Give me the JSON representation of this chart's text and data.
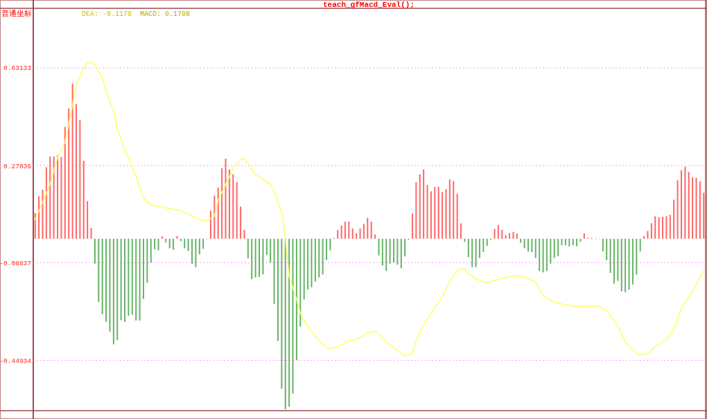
{
  "chart_data": {
    "type": "bar",
    "title": "teach_gfMacd_Eval();",
    "annotations": [
      "普通坐标",
      "MACD: 0.1708"
    ],
    "categories": [
      null,
      null,
      null,
      null,
      null,
      null,
      null,
      null,
      null,
      null,
      null,
      null,
      null,
      null,
      null,
      null,
      null,
      null,
      null,
      null,
      null,
      null,
      null,
      null,
      null,
      null,
      null,
      null,
      null,
      null,
      null,
      null,
      null,
      null,
      null,
      null,
      null,
      null,
      null,
      null,
      null,
      null,
      null,
      null,
      null,
      null,
      null,
      null,
      null,
      null,
      null,
      null,
      null,
      null,
      null,
      null,
      null,
      null,
      null,
      null,
      null,
      null,
      null,
      null,
      null,
      null,
      null,
      null,
      null,
      null,
      null,
      null,
      null,
      null,
      null,
      null,
      null,
      null,
      null,
      null,
      null,
      null,
      null,
      null,
      null,
      null,
      null,
      null,
      null,
      null,
      null,
      null,
      null,
      null,
      null,
      null,
      null,
      null,
      null,
      null,
      null,
      null,
      null,
      null,
      null,
      null,
      null,
      null,
      null,
      null,
      null,
      null,
      null,
      null,
      null,
      null,
      null,
      null,
      null,
      null,
      null,
      null,
      null,
      null,
      null,
      null,
      null,
      null,
      null,
      null,
      null,
      null,
      null,
      null,
      null,
      null,
      null,
      null,
      null,
      null,
      null,
      null,
      null,
      null,
      null,
      null,
      null,
      null,
      null,
      null,
      null,
      null,
      null,
      null,
      null,
      null,
      null,
      null,
      null,
      null,
      null,
      null,
      null,
      null,
      null,
      null,
      null,
      null,
      null,
      null,
      null,
      null,
      null,
      null,
      null,
      null,
      null,
      null,
      null,
      null
    ],
    "ylim": [
      -0.635,
      0.851
    ],
    "yticks": [
      0.63133,
      0.27036,
      -0.08837,
      -0.44934
    ],
    "grid": "y",
    "series": [
      {
        "values": [
          0.095,
          0.157,
          0.181,
          0.264,
          0.304,
          0.304,
          0.308,
          0.302,
          0.413,
          0.481,
          0.573,
          0.497,
          0.438,
          0.288,
          0.139,
          0.04,
          -0.092,
          -0.233,
          -0.279,
          -0.307,
          -0.343,
          -0.39,
          -0.375,
          -0.301,
          -0.307,
          -0.285,
          -0.281,
          -0.302,
          -0.302,
          -0.222,
          -0.163,
          -0.088,
          -0.039,
          -0.043,
          0.009,
          -0.014,
          -0.035,
          -0.041,
          0.01,
          -0.009,
          -0.035,
          -0.045,
          -0.092,
          -0.105,
          -0.058,
          -0.037,
          0,
          0.103,
          0.159,
          0.189,
          0.26,
          0.296,
          0.256,
          0.238,
          0.209,
          0.119,
          0.032,
          -0.072,
          -0.149,
          -0.143,
          -0.141,
          -0.132,
          -0.06,
          -0.088,
          -0.241,
          -0.377,
          -0.554,
          -0.63,
          -0.62,
          -0.572,
          -0.448,
          -0.324,
          -0.224,
          -0.187,
          -0.179,
          -0.158,
          -0.143,
          -0.132,
          -0.078,
          -0.043,
          0.003,
          0.032,
          0.049,
          0.063,
          0.063,
          0.038,
          0.02,
          0.038,
          0.055,
          0.077,
          0.063,
          0.016,
          -0.062,
          -0.099,
          -0.119,
          -0.092,
          -0.088,
          -0.096,
          -0.109,
          -0.065,
          -0.004,
          0.093,
          0.209,
          0.238,
          0.256,
          0.199,
          0.175,
          0.191,
          0.192,
          0.172,
          0.183,
          0.219,
          0.213,
          0.166,
          0.057,
          -0.011,
          -0.068,
          -0.105,
          -0.105,
          -0.071,
          -0.049,
          -0.026,
          -0.004,
          0.036,
          0.051,
          0.033,
          0.013,
          0.021,
          0.025,
          0.019,
          -0.015,
          -0.035,
          -0.047,
          -0.049,
          -0.071,
          -0.119,
          -0.124,
          -0.119,
          -0.092,
          -0.071,
          -0.065,
          -0.024,
          -0.024,
          -0.028,
          -0.024,
          -0.028,
          -0.011,
          0.02,
          0.003,
          0.003,
          0,
          0,
          -0.047,
          -0.079,
          -0.126,
          -0.166,
          -0.156,
          -0.194,
          -0.197,
          -0.188,
          -0.169,
          -0.132,
          -0.047,
          0.01,
          0.029,
          0.057,
          0.083,
          0.08,
          0.081,
          0.083,
          0.089,
          0.144,
          0.216,
          0.253,
          0.266,
          0.247,
          0.227,
          0.225,
          0.212,
          0.17
        ],
        "colors": [
          "#ff6666",
          "#ff6666",
          "#ff6666",
          "#ff6666",
          "#ff6666",
          "#ff6666",
          "#ff6666",
          "#ff6666",
          "#ff6666",
          "#ff6666",
          "#ff6666",
          "#ff6666",
          "#ff6666",
          "#ff6666",
          "#ff6666",
          "#ff6666",
          "#66b366",
          "#66b366",
          "#66b366",
          "#66b366",
          "#66b366",
          "#66b366",
          "#66b366",
          "#66b366",
          "#66b366",
          "#66b366",
          "#66b366",
          "#66b366",
          "#66b366",
          "#66b366",
          "#66b366",
          "#66b366",
          "#66b366",
          "#66b366",
          "#ff6666",
          "#66b366",
          "#66b366",
          "#66b366",
          "#ff6666",
          "#66b366",
          "#66b366",
          "#66b366",
          "#66b366",
          "#66b366",
          "#66b366",
          "#66b366",
          "#ff6666",
          "#ff6666",
          "#ff6666",
          "#ff6666",
          "#ff6666",
          "#ff6666",
          "#ff6666",
          "#ff6666",
          "#ff6666",
          "#ff6666",
          "#ff6666",
          "#66b366",
          "#66b366",
          "#66b366",
          "#66b366",
          "#66b366",
          "#66b366",
          "#66b366",
          "#66b366",
          "#66b366",
          "#66b366",
          "#66b366",
          "#66b366",
          "#66b366",
          "#66b366",
          "#66b366",
          "#66b366",
          "#66b366",
          "#66b366",
          "#66b366",
          "#66b366",
          "#66b366",
          "#66b366",
          "#66b366",
          "#ff6666",
          "#ff6666",
          "#ff6666",
          "#ff6666",
          "#ff6666",
          "#ff6666",
          "#ff6666",
          "#ff6666",
          "#ff6666",
          "#ff6666",
          "#ff6666",
          "#ff6666",
          "#66b366",
          "#66b366",
          "#66b366",
          "#66b366",
          "#66b366",
          "#66b366",
          "#66b366",
          "#66b366",
          "#66b366",
          "#ff6666",
          "#ff6666",
          "#ff6666",
          "#ff6666",
          "#ff6666",
          "#ff6666",
          "#ff6666",
          "#ff6666",
          "#ff6666",
          "#ff6666",
          "#ff6666",
          "#ff6666",
          "#ff6666",
          "#ff6666",
          "#66b366",
          "#66b366",
          "#66b366",
          "#66b366",
          "#66b366",
          "#66b366",
          "#66b366",
          "#66b366",
          "#ff6666",
          "#ff6666",
          "#ff6666",
          "#ff6666",
          "#ff6666",
          "#ff6666",
          "#ff6666",
          "#66b366",
          "#66b366",
          "#66b366",
          "#66b366",
          "#66b366",
          "#66b366",
          "#66b366",
          "#66b366",
          "#66b366",
          "#66b366",
          "#66b366",
          "#66b366",
          "#66b366",
          "#66b366",
          "#66b366",
          "#66b366",
          "#66b366",
          "#ff6666",
          "#ff6666",
          "#ff6666",
          "#ff6666",
          "#ff6666",
          "#66b366",
          "#66b366",
          "#66b366",
          "#66b366",
          "#66b366",
          "#66b366",
          "#66b366",
          "#66b366",
          "#66b366",
          "#66b366",
          "#66b366",
          "#ff6666",
          "#ff6666",
          "#ff6666",
          "#ff6666",
          "#ff6666",
          "#ff6666",
          "#ff6666",
          "#ff6666",
          "#ff6666",
          "#ff6666",
          "#ff6666",
          "#ff6666",
          "#ff6666",
          "#ff6666",
          "#ff6666",
          "#ff6666",
          "#ff6666"
        ]
      },
      {
        "type": "line",
        "name": "DEA: -0.1178",
        "color": "#ffff66",
        "values": [
          0.071,
          null,
          0.134,
          null,
          0.202,
          null,
          0.3,
          null,
          0.355,
          0.424,
          0.492,
          0.569,
          null,
          0.628,
          0.649,
          0.654,
          0.641,
          null,
          0.594,
          0.543,
          null,
          0.475,
          0.406,
          null,
          0.33,
          null,
          0.262,
          null,
          0.194,
          0.151,
          null,
          0.125,
          null,
          null,
          0.117,
          null,
          null,
          0.109,
          null,
          0.104,
          null,
          0.091,
          null,
          null,
          0.07,
          null,
          0.066,
          null,
          0.083,
          0.143,
          null,
          null,
          0.228,
          0.262,
          null,
          0.292,
          0.296,
          0.279,
          null,
          0.236,
          null,
          0.219,
          null,
          0.202,
          0.172,
          null,
          0.1,
          -0.002,
          -0.138,
          null,
          -0.224,
          -0.275,
          null,
          -0.326,
          null,
          null,
          -0.377,
          null,
          -0.402,
          -0.407,
          null,
          -0.398,
          null,
          null,
          -0.377,
          null,
          -0.373,
          null,
          null,
          -0.347,
          null,
          -0.341,
          -0.351,
          null,
          -0.381,
          null,
          -0.402,
          null,
          -0.424,
          -0.432,
          null,
          -0.424,
          -0.377,
          null,
          -0.317,
          null,
          -0.275,
          null,
          null,
          -0.215,
          null,
          -0.156,
          null,
          -0.117,
          -0.111,
          -0.113,
          -0.13,
          null,
          null,
          -0.154,
          null,
          -0.162,
          null,
          null,
          -0.151,
          null,
          -0.143,
          null,
          null,
          -0.137,
          null,
          -0.143,
          null,
          null,
          -0.16,
          null,
          -0.211,
          null,
          null,
          -0.234,
          null,
          -0.241,
          null,
          null,
          null,
          -0.251,
          null,
          null,
          -0.248,
          null,
          null,
          -0.249,
          null,
          -0.266,
          null,
          null,
          -0.322,
          null,
          -0.381,
          null,
          null,
          -0.424,
          -0.43,
          null,
          -0.424,
          null,
          -0.398,
          null,
          null,
          -0.373,
          null,
          -0.334,
          null,
          -0.258,
          null,
          null,
          -0.194,
          null,
          null,
          -0.118
        ]
      }
    ]
  }
}
